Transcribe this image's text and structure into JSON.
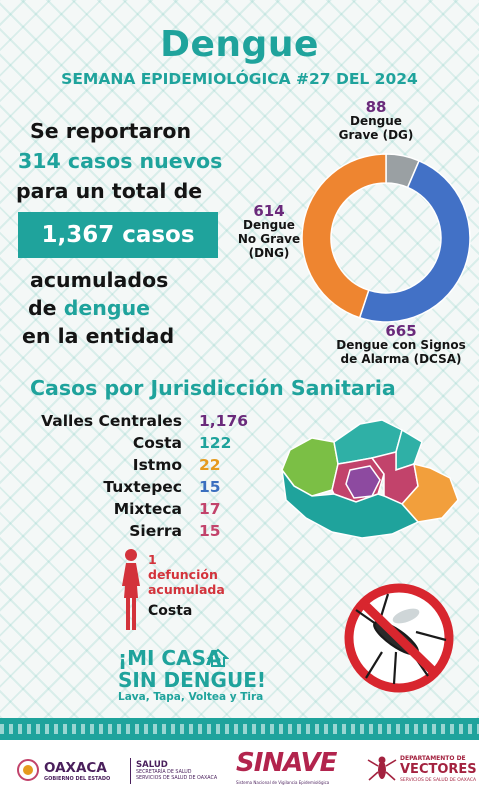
{
  "header": {
    "title": "Dengue",
    "subtitle": "SEMANA EPIDEMIOLÓGICA #27 DEL 2024"
  },
  "summary": {
    "line1": "Se reportaron",
    "line2": "314 casos nuevos",
    "line3": "para un total de",
    "total": "1,367 casos",
    "line4": "acumulados",
    "line5_a": "de ",
    "line5_b": "dengue",
    "line6": "en la entidad"
  },
  "chart_data": {
    "type": "pie",
    "donut": true,
    "slices": [
      {
        "value": 88,
        "label_1": "Dengue",
        "label_2": "Grave (DG)",
        "color": "#9aa0a3"
      },
      {
        "value": 665,
        "label_1": "Dengue con Signos",
        "label_2": "de Alarma (DCSA)",
        "color": "#4271c6"
      },
      {
        "value": 614,
        "label_1": "Dengue",
        "label_2": "No Grave",
        "label_3": "(DNG)",
        "color": "#ee8530"
      }
    ]
  },
  "jurisdictions": {
    "title": "Casos por Jurisdicción Sanitaria",
    "items": [
      {
        "name": "Valles Centrales",
        "value": "1,176",
        "color": "#6a2a7b"
      },
      {
        "name": "Costa",
        "value": "122",
        "color": "#1fa39c"
      },
      {
        "name": "Istmo",
        "value": "22",
        "color": "#e59a1e"
      },
      {
        "name": "Tuxtepec",
        "value": "15",
        "color": "#3b6fbf"
      },
      {
        "name": "Mixteca",
        "value": "17",
        "color": "#c2436b"
      },
      {
        "name": "Sierra",
        "value": "15",
        "color": "#c2436b"
      }
    ]
  },
  "deaths": {
    "count": "1",
    "label_1": "defunción",
    "label_2": "acumulada",
    "place": "Costa"
  },
  "campaign": {
    "line1": "¡MI CASA",
    "line2": "SIN DENGUE!",
    "tagline": "Lava, Tapa, Voltea y Tira"
  },
  "footer": {
    "oaxaca": "OAXACA",
    "oaxaca_sub": "GOBIERNO DEL ESTADO",
    "salud": "SALUD",
    "salud_sub1": "SECRETARÍA DE SALUD",
    "salud_sub2": "SERVICIOS DE SALUD DE OAXACA",
    "sinave": "SINAVE",
    "sinave_sub": "Sistema Nacional de Vigilancia Epidemiológica",
    "vectores_1": "DEPARTAMENTO DE",
    "vectores_2": "VECTORES",
    "vectores_3": "SERVICIOS DE SALUD DE OAXACA"
  }
}
